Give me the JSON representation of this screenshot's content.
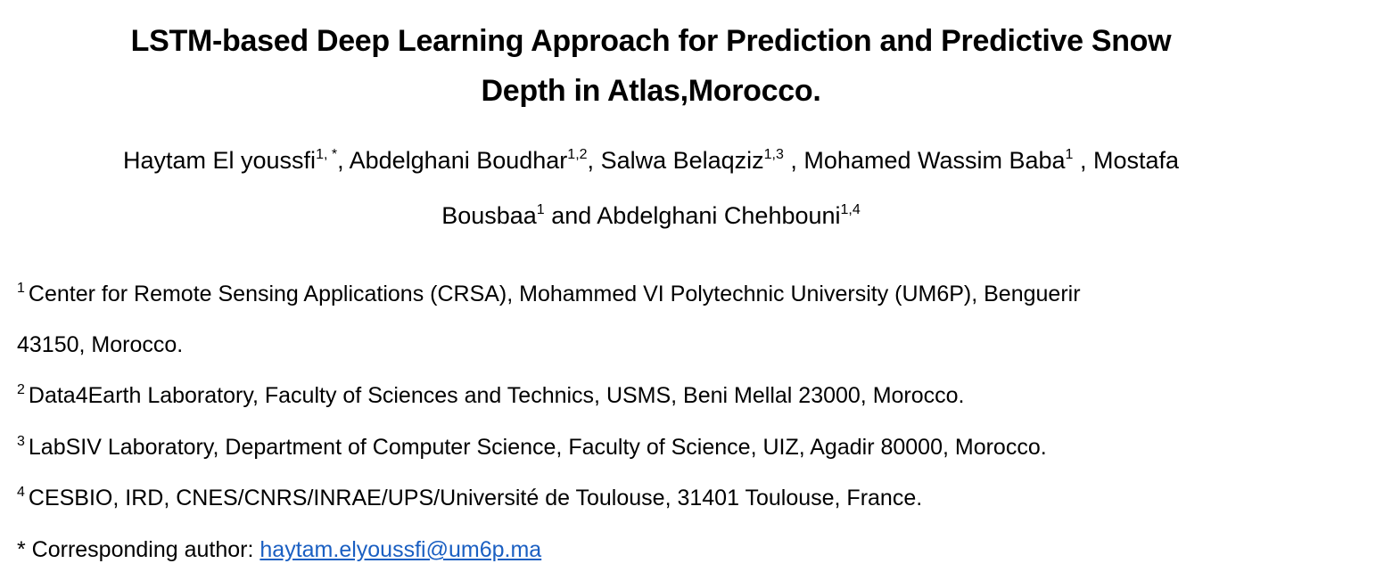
{
  "paper": {
    "title_line1": "LSTM-based Deep Learning Approach for Prediction and Predictive Snow",
    "title_line2": "Depth in Atlas,Morocco.",
    "authors": [
      {
        "name": "Haytam El youssfi",
        "sup": "1, *"
      },
      {
        "name": "Abdelghani Boudhar",
        "sup": "1,2"
      },
      {
        "name": "Salwa Belaqziz",
        "sup": "1,3"
      },
      {
        "name": "Mohamed Wassim Baba",
        "sup": "1"
      },
      {
        "name_part1": "Mostafa",
        "name_part2": "Bousbaa",
        "sup": "1"
      },
      {
        "name": "Abdelghani Chehbouni",
        "sup": "1,4"
      }
    ],
    "and_word": "and",
    "affiliations": [
      {
        "sup": "1",
        "line1": "Center for Remote Sensing Applications (CRSA), Mohammed VI Polytechnic University (UM6P), Benguerir",
        "line2": "43150, Morocco."
      },
      {
        "sup": "2",
        "text": "Data4Earth Laboratory, Faculty of Sciences and Technics, USMS, Beni Mellal 23000, Morocco."
      },
      {
        "sup": "3",
        "text": "LabSIV Laboratory, Department of Computer Science, Faculty of Science, UIZ, Agadir 80000, Morocco."
      },
      {
        "sup": "4",
        "text": "CESBIO, IRD, CNES/CNRS/INRAE/UPS/Université de Toulouse, 31401 Toulouse, France."
      }
    ],
    "corresponding": {
      "label": "* Corresponding author: ",
      "email": "haytam.elyoussfi@um6p.ma"
    }
  },
  "colors": {
    "text": "#000000",
    "link": "#1a5fc2",
    "background": "#ffffff"
  }
}
